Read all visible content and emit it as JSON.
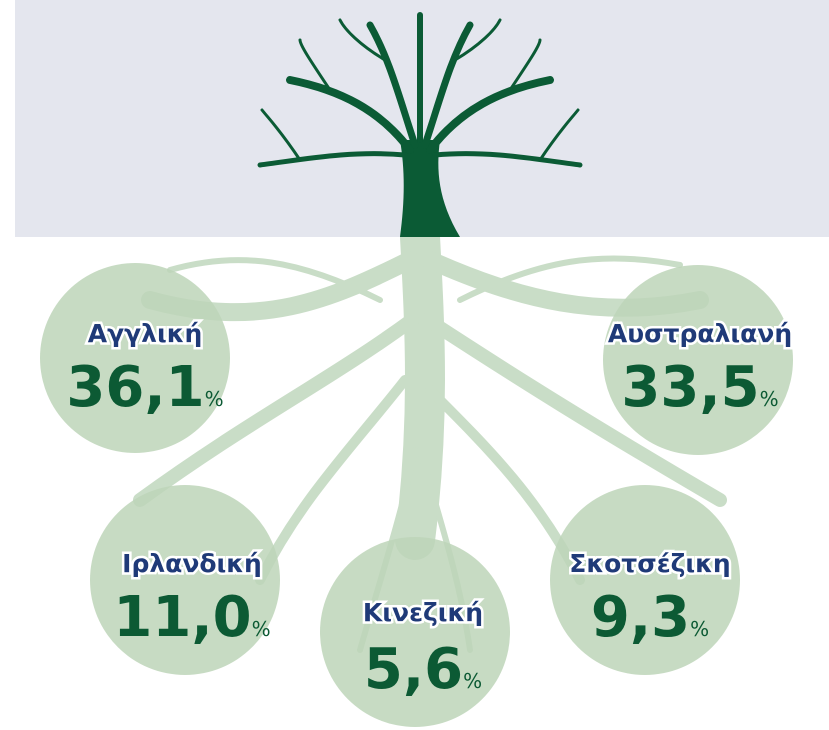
{
  "unit": "%",
  "nodes": [
    {
      "label": "Αγγλική",
      "value": "36,1"
    },
    {
      "label": "Αυστραλιανή",
      "value": "33,5"
    },
    {
      "label": "Ιρλανδική",
      "value": "11,0"
    },
    {
      "label": "Κινεζική",
      "value": "5,6"
    },
    {
      "label": "Σκοτσέζικη",
      "value": "9,3"
    }
  ]
}
